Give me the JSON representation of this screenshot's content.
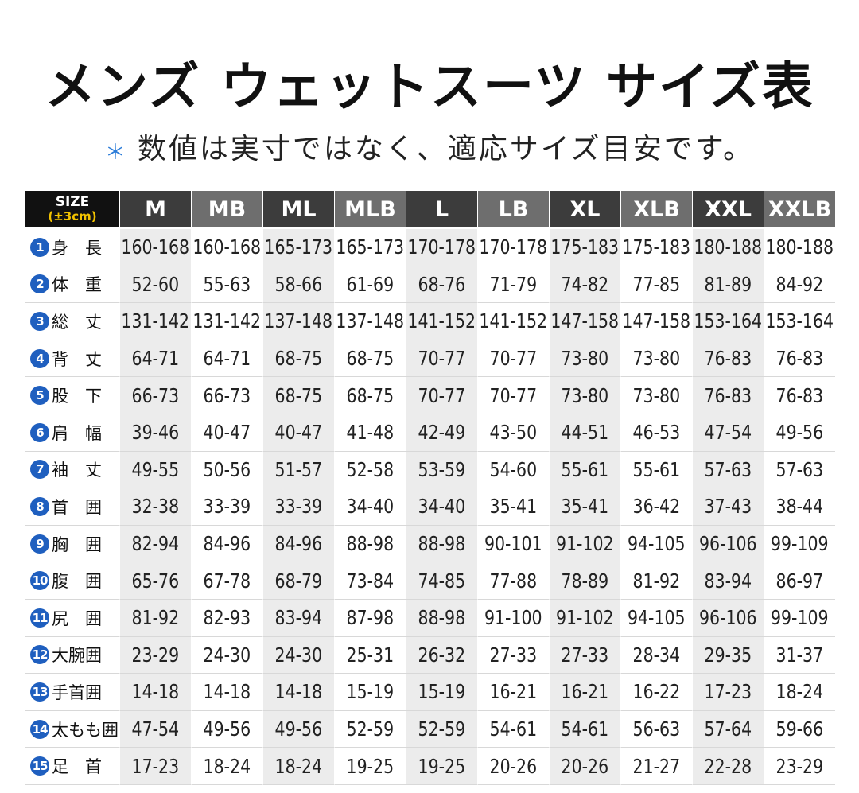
{
  "header": {
    "title": "メンズ ウェットスーツ サイズ表",
    "note_mark": "＊",
    "note": "数値は実寸ではなく、適応サイズ目安です。"
  },
  "table": {
    "corner": {
      "title": "SIZE",
      "subtitle": "(±3cm)"
    },
    "columns": [
      "M",
      "MB",
      "ML",
      "MLB",
      "L",
      "LB",
      "XL",
      "XLB",
      "XXL",
      "XXLB"
    ],
    "rows": [
      {
        "num": "1",
        "label": "身　長",
        "values": [
          "160-168",
          "160-168",
          "165-173",
          "165-173",
          "170-178",
          "170-178",
          "175-183",
          "175-183",
          "180-188",
          "180-188"
        ]
      },
      {
        "num": "2",
        "label": "体　重",
        "values": [
          "52-60",
          "55-63",
          "58-66",
          "61-69",
          "68-76",
          "71-79",
          "74-82",
          "77-85",
          "81-89",
          "84-92"
        ]
      },
      {
        "num": "3",
        "label": "総　丈",
        "values": [
          "131-142",
          "131-142",
          "137-148",
          "137-148",
          "141-152",
          "141-152",
          "147-158",
          "147-158",
          "153-164",
          "153-164"
        ]
      },
      {
        "num": "4",
        "label": "背　丈",
        "values": [
          "64-71",
          "64-71",
          "68-75",
          "68-75",
          "70-77",
          "70-77",
          "73-80",
          "73-80",
          "76-83",
          "76-83"
        ]
      },
      {
        "num": "5",
        "label": "股　下",
        "values": [
          "66-73",
          "66-73",
          "68-75",
          "68-75",
          "70-77",
          "70-77",
          "73-80",
          "73-80",
          "76-83",
          "76-83"
        ]
      },
      {
        "num": "6",
        "label": "肩　幅",
        "values": [
          "39-46",
          "40-47",
          "40-47",
          "41-48",
          "42-49",
          "43-50",
          "44-51",
          "46-53",
          "47-54",
          "49-56"
        ]
      },
      {
        "num": "7",
        "label": "袖　丈",
        "values": [
          "49-55",
          "50-56",
          "51-57",
          "52-58",
          "53-59",
          "54-60",
          "55-61",
          "55-61",
          "57-63",
          "57-63"
        ]
      },
      {
        "num": "8",
        "label": "首　囲",
        "values": [
          "32-38",
          "33-39",
          "33-39",
          "34-40",
          "34-40",
          "35-41",
          "35-41",
          "36-42",
          "37-43",
          "38-44"
        ]
      },
      {
        "num": "9",
        "label": "胸　囲",
        "values": [
          "82-94",
          "84-96",
          "84-96",
          "88-98",
          "88-98",
          "90-101",
          "91-102",
          "94-105",
          "96-106",
          "99-109"
        ]
      },
      {
        "num": "10",
        "label": "腹　囲",
        "values": [
          "65-76",
          "67-78",
          "68-79",
          "73-84",
          "74-85",
          "77-88",
          "78-89",
          "81-92",
          "83-94",
          "86-97"
        ]
      },
      {
        "num": "11",
        "label": "尻　囲",
        "values": [
          "81-92",
          "82-93",
          "83-94",
          "87-98",
          "88-98",
          "91-100",
          "91-102",
          "94-105",
          "96-106",
          "99-109"
        ]
      },
      {
        "num": "12",
        "label": "大腕囲",
        "values": [
          "23-29",
          "24-30",
          "24-30",
          "25-31",
          "26-32",
          "27-33",
          "27-33",
          "28-34",
          "29-35",
          "31-37"
        ]
      },
      {
        "num": "13",
        "label": "手首囲",
        "values": [
          "14-18",
          "14-18",
          "14-18",
          "15-19",
          "15-19",
          "16-21",
          "16-21",
          "16-22",
          "17-23",
          "18-24"
        ]
      },
      {
        "num": "14",
        "label": "太もも囲",
        "values": [
          "47-54",
          "49-56",
          "49-56",
          "52-59",
          "52-59",
          "54-61",
          "54-61",
          "56-63",
          "57-64",
          "59-66"
        ]
      },
      {
        "num": "15",
        "label": "足　首",
        "values": [
          "17-23",
          "18-24",
          "18-24",
          "19-25",
          "19-25",
          "20-26",
          "20-26",
          "21-27",
          "22-28",
          "23-29"
        ]
      }
    ]
  }
}
